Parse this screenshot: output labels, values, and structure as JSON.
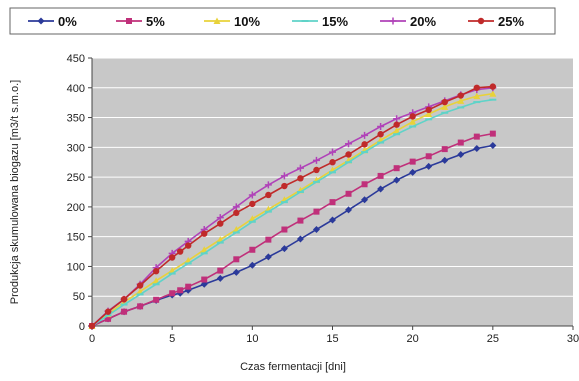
{
  "chart_data": {
    "type": "line",
    "title": "",
    "xlabel": "Czas fermentacji [dni]",
    "ylabel": "Produkcja skumulowana biogazu [m3/t s.m.o.]",
    "xlim": [
      0,
      30
    ],
    "ylim": [
      0,
      450
    ],
    "x_ticks": [
      "0",
      "5",
      "10",
      "15",
      "20",
      "25",
      "30"
    ],
    "y_ticks": [
      "0",
      "50",
      "100",
      "150",
      "200",
      "250",
      "300",
      "350",
      "400",
      "450"
    ],
    "grid": true,
    "legend_position": "top",
    "plot_background": "#c8c8c8",
    "series": [
      {
        "name": "0%",
        "color": "#2b3a9a",
        "marker": "diamond",
        "x": [
          0,
          1,
          2,
          3,
          4,
          5,
          5.5,
          6,
          7,
          8,
          9,
          10,
          11,
          12,
          13,
          14,
          15,
          16,
          17,
          18,
          19,
          20,
          21,
          22,
          23,
          24,
          25
        ],
        "y": [
          0,
          12,
          24,
          33,
          43,
          52,
          55,
          60,
          70,
          80,
          90,
          102,
          116,
          130,
          146,
          162,
          178,
          195,
          212,
          230,
          245,
          258,
          268,
          278,
          288,
          298,
          303
        ]
      },
      {
        "name": "5%",
        "color": "#c0307a",
        "marker": "square",
        "x": [
          0,
          1,
          2,
          3,
          4,
          5,
          5.5,
          6,
          7,
          8,
          9,
          10,
          11,
          12,
          13,
          14,
          15,
          16,
          17,
          18,
          19,
          20,
          21,
          22,
          23,
          24,
          25
        ],
        "y": [
          0,
          12,
          24,
          33,
          44,
          55,
          60,
          66,
          78,
          93,
          112,
          128,
          145,
          162,
          177,
          192,
          208,
          222,
          238,
          252,
          265,
          276,
          285,
          297,
          308,
          318,
          323
        ]
      },
      {
        "name": "10%",
        "color": "#e8d23a",
        "marker": "triangle",
        "x": [
          0,
          1,
          2,
          3,
          4,
          5,
          6,
          7,
          8,
          9,
          10,
          11,
          12,
          13,
          14,
          15,
          16,
          17,
          18,
          19,
          20,
          21,
          22,
          23,
          24,
          25
        ],
        "y": [
          0,
          20,
          40,
          58,
          76,
          93,
          110,
          128,
          145,
          162,
          180,
          196,
          212,
          228,
          245,
          262,
          278,
          295,
          312,
          328,
          343,
          356,
          368,
          378,
          386,
          390
        ]
      },
      {
        "name": "15%",
        "color": "#5fd3c8",
        "marker": "dash",
        "x": [
          0,
          1,
          2,
          3,
          4,
          5,
          6,
          7,
          8,
          9,
          10,
          11,
          12,
          13,
          14,
          15,
          16,
          17,
          18,
          19,
          20,
          21,
          22,
          23,
          24,
          25
        ],
        "y": [
          0,
          18,
          36,
          53,
          70,
          88,
          105,
          122,
          140,
          157,
          175,
          192,
          208,
          225,
          242,
          258,
          275,
          292,
          308,
          322,
          335,
          347,
          358,
          367,
          376,
          380
        ]
      },
      {
        "name": "20%",
        "color": "#b042b8",
        "marker": "plus",
        "x": [
          0,
          1,
          2,
          3,
          4,
          5,
          6,
          7,
          8,
          9,
          10,
          11,
          12,
          13,
          14,
          15,
          16,
          17,
          18,
          19,
          20,
          21,
          22,
          23,
          24,
          25
        ],
        "y": [
          0,
          25,
          45,
          70,
          98,
          122,
          142,
          162,
          182,
          200,
          220,
          237,
          252,
          265,
          278,
          292,
          306,
          320,
          335,
          348,
          358,
          368,
          378,
          388,
          397,
          400
        ]
      },
      {
        "name": "25%",
        "color": "#c02a2a",
        "marker": "circle",
        "x": [
          0,
          1,
          2,
          3,
          4,
          5,
          5.5,
          6,
          7,
          8,
          9,
          10,
          11,
          12,
          13,
          14,
          15,
          16,
          17,
          18,
          19,
          20,
          21,
          22,
          23,
          24,
          25
        ],
        "y": [
          0,
          24,
          45,
          68,
          92,
          115,
          125,
          135,
          155,
          172,
          190,
          205,
          220,
          235,
          248,
          262,
          275,
          288,
          305,
          322,
          338,
          352,
          363,
          376,
          387,
          400,
          402
        ]
      }
    ]
  }
}
